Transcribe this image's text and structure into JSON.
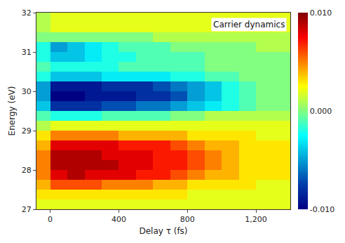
{
  "chart_data": {
    "type": "heatmap",
    "annotation": "Carrier dynamics",
    "x_label": "Delay τ (fs)",
    "y_label": "Energy (eV)",
    "x": [
      -50,
      50,
      150,
      250,
      350,
      450,
      550,
      650,
      750,
      850,
      950,
      1050,
      1150,
      1250,
      1350
    ],
    "y": [
      27.125,
      27.375,
      27.625,
      27.875,
      28.125,
      28.375,
      28.625,
      28.875,
      29.125,
      29.375,
      29.625,
      29.875,
      30.125,
      30.375,
      30.625,
      30.875,
      31.125,
      31.375,
      31.625,
      31.875
    ],
    "cells": [
      [
        0.002,
        0.002,
        0.002,
        0.002,
        0.002,
        0.002,
        0.002,
        0.002,
        0.002,
        0.002,
        0.002,
        0.002,
        0.002,
        0.002,
        0.002
      ],
      [
        0.003,
        0.003,
        0.003,
        0.003,
        0.003,
        0.003,
        0.003,
        0.003,
        0.003,
        0.002,
        0.002,
        0.002,
        0.002,
        0.002,
        0.002
      ],
      [
        0.004,
        0.006,
        0.006,
        0.006,
        0.005,
        0.005,
        0.005,
        0.004,
        0.004,
        0.003,
        0.003,
        0.003,
        0.003,
        0.002,
        0.002
      ],
      [
        0.005,
        0.008,
        0.009,
        0.008,
        0.008,
        0.008,
        0.007,
        0.007,
        0.006,
        0.005,
        0.004,
        0.004,
        0.003,
        0.003,
        0.003
      ],
      [
        0.005,
        0.009,
        0.009,
        0.009,
        0.009,
        0.008,
        0.008,
        0.007,
        0.007,
        0.006,
        0.005,
        0.004,
        0.003,
        0.003,
        0.003
      ],
      [
        0.005,
        0.009,
        0.009,
        0.009,
        0.008,
        0.008,
        0.008,
        0.007,
        0.007,
        0.006,
        0.005,
        0.004,
        0.003,
        0.003,
        0.003
      ],
      [
        0.004,
        0.008,
        0.008,
        0.008,
        0.008,
        0.007,
        0.007,
        0.007,
        0.006,
        0.005,
        0.004,
        0.004,
        0.003,
        0.003,
        0.003
      ],
      [
        0.003,
        0.005,
        0.005,
        0.005,
        0.005,
        0.004,
        0.004,
        0.004,
        0.004,
        0.003,
        0.003,
        0.003,
        0.003,
        0.002,
        0.002
      ],
      [
        0.001,
        0.002,
        0.002,
        0.002,
        0.002,
        0.002,
        0.002,
        0.002,
        0.002,
        0.002,
        0.002,
        0.002,
        0.002,
        0.002,
        0.002
      ],
      [
        -0.001,
        -0.002,
        -0.002,
        -0.002,
        -0.001,
        -0.001,
        -0.001,
        -0.001,
        0.0,
        0.0,
        0.001,
        0.001,
        0.001,
        0.001,
        0.001
      ],
      [
        -0.004,
        -0.008,
        -0.008,
        -0.008,
        -0.007,
        -0.007,
        -0.006,
        -0.006,
        -0.005,
        -0.004,
        -0.003,
        -0.002,
        -0.001,
        0.0,
        0.0
      ],
      [
        -0.005,
        -0.01,
        -0.01,
        -0.009,
        -0.009,
        -0.009,
        -0.008,
        -0.008,
        -0.007,
        -0.005,
        -0.004,
        -0.002,
        -0.001,
        0.0,
        0.0
      ],
      [
        -0.005,
        -0.009,
        -0.009,
        -0.009,
        -0.008,
        -0.008,
        -0.008,
        -0.007,
        -0.006,
        -0.005,
        -0.004,
        -0.002,
        -0.001,
        0.0,
        0.0
      ],
      [
        -0.002,
        -0.004,
        -0.004,
        -0.004,
        -0.003,
        -0.003,
        -0.003,
        -0.003,
        -0.002,
        -0.002,
        -0.001,
        -0.001,
        0.0,
        0.0,
        0.0
      ],
      [
        -0.001,
        -0.002,
        -0.002,
        -0.002,
        -0.002,
        -0.001,
        -0.001,
        -0.001,
        -0.001,
        -0.001,
        0.0,
        0.0,
        0.0,
        0.0,
        0.0
      ],
      [
        -0.002,
        -0.004,
        -0.004,
        -0.003,
        -0.002,
        -0.002,
        -0.001,
        -0.001,
        -0.001,
        -0.001,
        0.0,
        0.0,
        0.0,
        0.0,
        0.0
      ],
      [
        -0.002,
        -0.005,
        -0.004,
        -0.003,
        -0.002,
        -0.001,
        -0.001,
        -0.001,
        0.0,
        0.0,
        0.0,
        0.0,
        0.0,
        0.001,
        0.001
      ],
      [
        0.0,
        0.0,
        0.0,
        0.0,
        0.0,
        0.0,
        0.0,
        0.001,
        0.001,
        0.001,
        0.001,
        0.001,
        0.001,
        0.001,
        0.001
      ],
      [
        0.001,
        0.002,
        0.002,
        0.002,
        0.002,
        0.002,
        0.002,
        0.002,
        0.002,
        0.002,
        0.002,
        0.002,
        0.002,
        0.002,
        0.002
      ],
      [
        0.001,
        0.002,
        0.002,
        0.002,
        0.002,
        0.002,
        0.002,
        0.002,
        0.002,
        0.002,
        0.002,
        0.002,
        0.002,
        0.002,
        0.002
      ]
    ],
    "xlim": [
      -80,
      1400
    ],
    "xticks": [
      0,
      400,
      800,
      {
        "value": 1200,
        "label": "1,200"
      }
    ],
    "ylim": [
      27,
      32
    ],
    "yticks": [
      27,
      28,
      29,
      30,
      31,
      32
    ],
    "colorbar": {
      "range": [
        -0.01,
        0.01
      ],
      "ticks": [
        {
          "value": -0.01,
          "label": "-0.010"
        },
        {
          "value": 0,
          "label": "0.000"
        },
        {
          "value": 0.01,
          "label": "0.010"
        }
      ]
    }
  }
}
